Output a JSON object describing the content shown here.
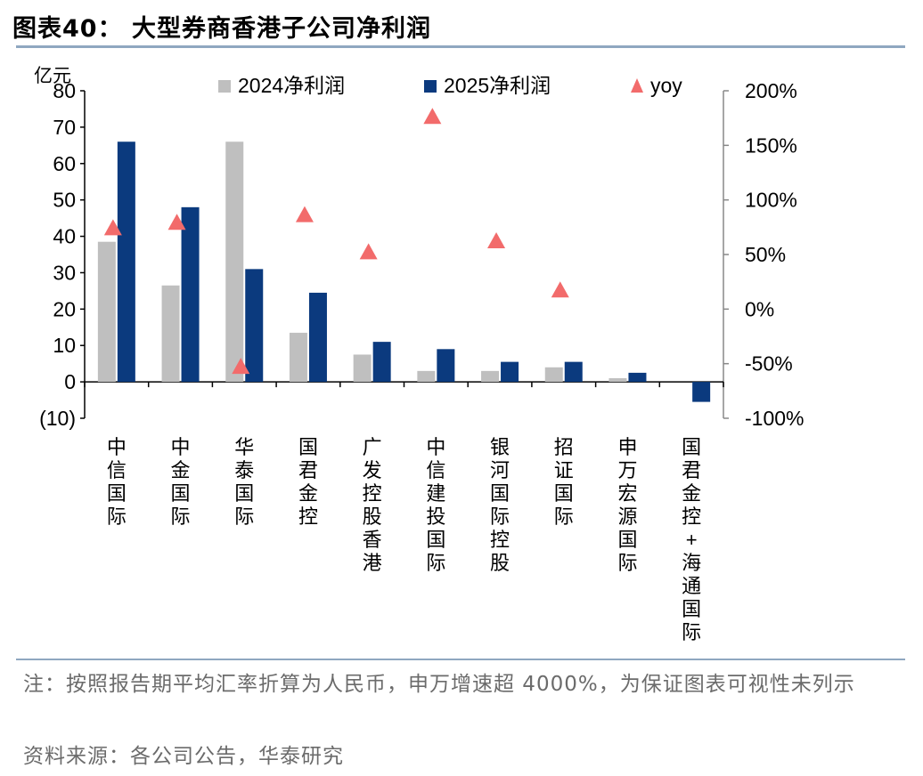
{
  "header": {
    "title": "图表40：  大型券商香港子公司净利润"
  },
  "chart_data": {
    "type": "bar",
    "y_unit_label": "亿元",
    "categories": [
      "中信国际",
      "中金国际",
      "华泰国际",
      "国君金控",
      "广发控股香港",
      "中信建投国际",
      "银河国际控股",
      "招证国际",
      "申万宏源国际",
      "国君金控+海通国际"
    ],
    "series": [
      {
        "name": "2024净利润",
        "color": "#bfbfbf",
        "values": [
          38.5,
          26.5,
          66,
          13.5,
          7.5,
          3,
          3,
          4,
          1,
          0
        ]
      },
      {
        "name": "2025净利润",
        "color": "#0b3a7e",
        "values": [
          66,
          48,
          31,
          24.5,
          11,
          9,
          5.5,
          5.5,
          2.5,
          -5.5
        ]
      }
    ],
    "yoy": {
      "name": "yoy",
      "color": "#f26b6b",
      "values": [
        75,
        80,
        -52,
        87,
        53,
        177,
        63,
        18,
        null,
        null
      ]
    },
    "y_left": {
      "min": -10,
      "max": 80,
      "ticks": [
        -10,
        0,
        10,
        20,
        30,
        40,
        50,
        60,
        70,
        80
      ],
      "tick_labels": [
        "(10)",
        "0",
        "10",
        "20",
        "30",
        "40",
        "50",
        "60",
        "70",
        "80"
      ]
    },
    "y_right": {
      "min": -100,
      "max": 200,
      "ticks": [
        -100,
        -50,
        0,
        50,
        100,
        150,
        200
      ],
      "tick_labels": [
        "-100%",
        "-50%",
        "0%",
        "50%",
        "100%",
        "150%",
        "200%"
      ]
    },
    "legend_position": "top"
  },
  "footer": {
    "note": "注：按照报告期平均汇率折算为人民币，申万增速超 4000%，为保证图表可视性未列示",
    "source": "资料来源：各公司公告，华泰研究"
  }
}
